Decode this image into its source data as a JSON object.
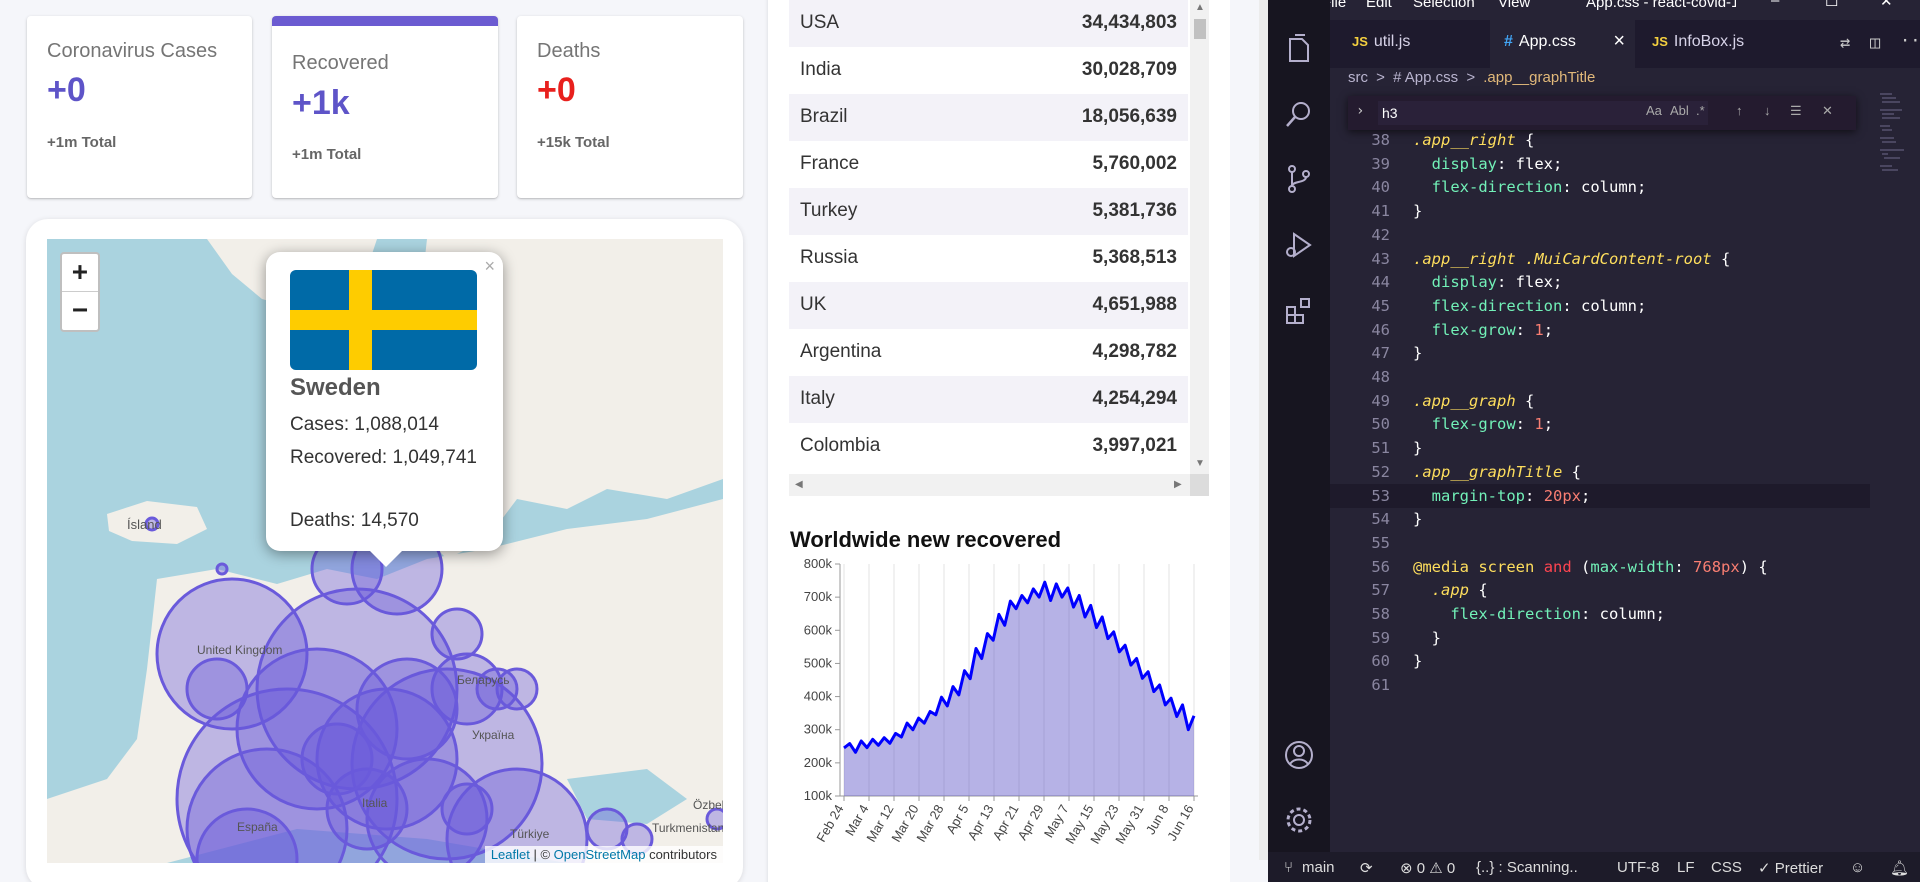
{
  "infoboxes": [
    {
      "title": "Coronavirus Cases",
      "value": "+0",
      "total": "+1m Total",
      "selected": false
    },
    {
      "title": "Recovered",
      "value": "+1k",
      "total": "+1m Total",
      "selected": true
    },
    {
      "title": "Deaths",
      "value": "+0",
      "total": "+15k Total",
      "selected": false
    }
  ],
  "map": {
    "zoom_in": "+",
    "zoom_out": "−",
    "attribution": {
      "leaflet": "Leaflet",
      "sep": " | © ",
      "osm": "OpenStreetMap",
      "rest": " contributors"
    },
    "labels": [
      "Ísland",
      "United Kingdom",
      "Беларусь",
      "Україна",
      "España",
      "Türkiye",
      "Italia",
      "Özbek",
      "Turkmenistan"
    ],
    "popup": {
      "close": "×",
      "country": "Sweden",
      "cases": "Cases: 1,088,014",
      "recovered": "Recovered: 1,049,741",
      "deaths": "Deaths: 14,570"
    }
  },
  "table": {
    "rows": [
      {
        "country": "USA",
        "cases": "34,434,803"
      },
      {
        "country": "India",
        "cases": "30,028,709"
      },
      {
        "country": "Brazil",
        "cases": "18,056,639"
      },
      {
        "country": "France",
        "cases": "5,760,002"
      },
      {
        "country": "Turkey",
        "cases": "5,381,736"
      },
      {
        "country": "Russia",
        "cases": "5,368,513"
      },
      {
        "country": "UK",
        "cases": "4,651,988"
      },
      {
        "country": "Argentina",
        "cases": "4,298,782"
      },
      {
        "country": "Italy",
        "cases": "4,254,294"
      },
      {
        "country": "Colombia",
        "cases": "3,997,021"
      }
    ]
  },
  "graph": {
    "title": "Worldwide new recovered"
  },
  "chart_data": {
    "type": "area",
    "title": "Worldwide new recovered",
    "ylim": [
      100000,
      800000
    ],
    "y_ticks": [
      "100k",
      "200k",
      "300k",
      "400k",
      "500k",
      "600k",
      "700k",
      "800k"
    ],
    "x_ticks": [
      "Feb 24",
      "Mar 4",
      "Mar 12",
      "Mar 20",
      "Mar 28",
      "Apr 5",
      "Apr 13",
      "Apr 21",
      "Apr 29",
      "May 7",
      "May 15",
      "May 23",
      "May 31",
      "Jun 8",
      "Jun 16"
    ],
    "series": [
      {
        "values": [
          245000,
          258000,
          232000,
          266000,
          246000,
          271000,
          253000,
          276000,
          259000,
          289000,
          278000,
          320000,
          300000,
          335000,
          320000,
          355000,
          345000,
          398000,
          372000,
          430000,
          405000,
          478000,
          454000,
          545000,
          515000,
          590000,
          570000,
          648000,
          615000,
          688000,
          665000,
          705000,
          683000,
          725000,
          700000,
          745000,
          690000,
          740000,
          700000,
          728000,
          670000,
          705000,
          640000,
          675000,
          608000,
          640000,
          575000,
          595000,
          535000,
          555000,
          495000,
          515000,
          455000,
          475000,
          415000,
          435000,
          375000,
          395000,
          340000,
          375000,
          300000,
          342000
        ]
      }
    ],
    "line_color": "#0000ff",
    "fill_color": "rgba(94,84,200,0.45)"
  },
  "vscode": {
    "menu": [
      "File",
      "Edit",
      "Selection",
      "View"
    ],
    "window_title": "App.css - react-covid-1...",
    "tabs": [
      {
        "icon": "JS",
        "label": "util.js",
        "active": false
      },
      {
        "icon": "#",
        "label": "App.css",
        "active": true,
        "close": "×"
      },
      {
        "icon": "JS",
        "label": "InfoBox.js",
        "active": false
      }
    ],
    "breadcrumbs": {
      "a": "src",
      "sep": ">",
      "b": "# App.css",
      "c": ".app__graphTitle"
    },
    "find": {
      "value": "h3",
      "opts": [
        "Aa",
        "Abl",
        ".*"
      ]
    },
    "status": {
      "branch": "main",
      "errors": "⊗ 0 ⚠ 0",
      "scanning": "{..} : Scanning..",
      "encoding": "UTF-8",
      "eol": "LF",
      "lang": "CSS",
      "prettier": "✓ Prettier"
    },
    "lines": [
      {
        "n": "38",
        "t": ".app__right {"
      },
      {
        "n": "39",
        "t": "  display: flex;"
      },
      {
        "n": "40",
        "t": "  flex-direction: column;"
      },
      {
        "n": "41",
        "t": "}"
      },
      {
        "n": "42",
        "t": ""
      },
      {
        "n": "43",
        "t": ".app__right .MuiCardContent-root {"
      },
      {
        "n": "44",
        "t": "  display: flex;"
      },
      {
        "n": "45",
        "t": "  flex-direction: column;"
      },
      {
        "n": "46",
        "t": "  flex-grow: 1;"
      },
      {
        "n": "47",
        "t": "}"
      },
      {
        "n": "48",
        "t": ""
      },
      {
        "n": "49",
        "t": ".app__graph {"
      },
      {
        "n": "50",
        "t": "  flex-grow: 1;"
      },
      {
        "n": "51",
        "t": "}"
      },
      {
        "n": "52",
        "t": ".app__graphTitle {"
      },
      {
        "n": "53",
        "t": "  margin-top: 20px;"
      },
      {
        "n": "54",
        "t": "}"
      },
      {
        "n": "55",
        "t": ""
      },
      {
        "n": "56",
        "t": "@media screen and (max-width: 768px) {"
      },
      {
        "n": "57",
        "t": "  .app {"
      },
      {
        "n": "58",
        "t": "    flex-direction: column;"
      },
      {
        "n": "59",
        "t": "  }"
      },
      {
        "n": "60",
        "t": "}"
      },
      {
        "n": "61",
        "t": ""
      }
    ]
  }
}
